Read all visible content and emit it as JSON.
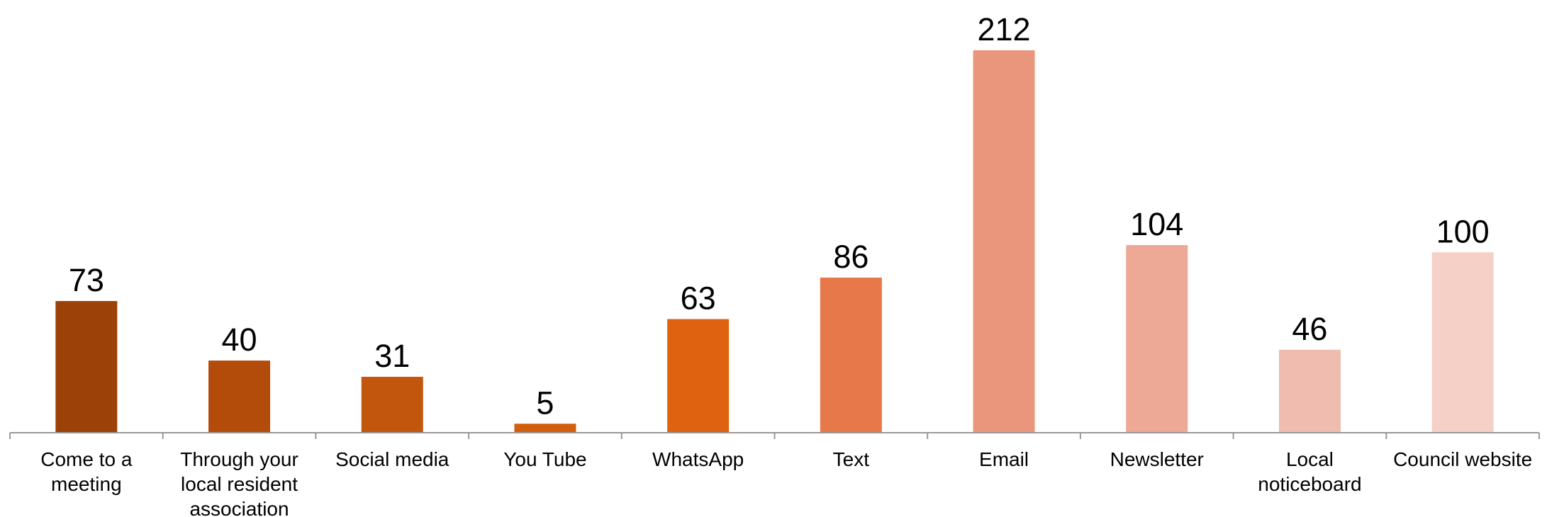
{
  "chart_data": {
    "type": "bar",
    "categories": [
      "Come to a meeting",
      "Through your local resident association",
      "Social media",
      "You Tube",
      "WhatsApp",
      "Text",
      "Email",
      "Newsletter",
      "Local noticeboard",
      "Council website"
    ],
    "values": [
      73,
      40,
      31,
      5,
      63,
      86,
      212,
      104,
      46,
      100
    ],
    "colors": [
      "#9c4108",
      "#b34c0a",
      "#c2560d",
      "#d25f0e",
      "#de6210",
      "#e6784a",
      "#e9967c",
      "#eda996",
      "#f0bcb0",
      "#f4d0c6"
    ]
  }
}
